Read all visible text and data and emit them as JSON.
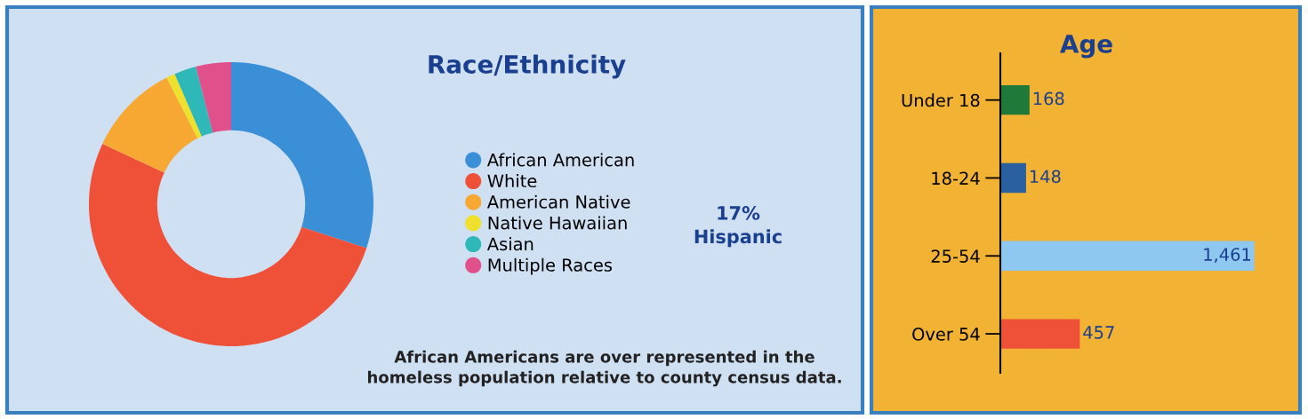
{
  "chart_data": [
    {
      "type": "donut",
      "title": "Race/Ethnicity",
      "categories": [
        "African American",
        "White",
        "American Native",
        "Native Hawaiian",
        "Asian",
        "Multiple Races"
      ],
      "values": [
        30,
        52,
        10.5,
        1,
        2.5,
        4
      ],
      "colors": [
        "#3a8fd6",
        "#ef5138",
        "#f6a832",
        "#eee02c",
        "#2fb8b8",
        "#e0508a"
      ],
      "legend": "right",
      "annotations": [
        "17%\nHispanic",
        "African Americans are over represented in the\nhomeless population relative to county census data."
      ]
    },
    {
      "type": "bar",
      "title": "Age",
      "orientation": "horizontal",
      "categories": [
        "Under 18",
        "18-24",
        "25-54",
        "Over 54"
      ],
      "values": [
        168,
        148,
        1461,
        457
      ],
      "colors": [
        "#1f7a3a",
        "#2a5fa0",
        "#8ec8f0",
        "#ef5138"
      ],
      "value_labels": [
        "168",
        "148",
        "1,461",
        "457"
      ]
    }
  ]
}
